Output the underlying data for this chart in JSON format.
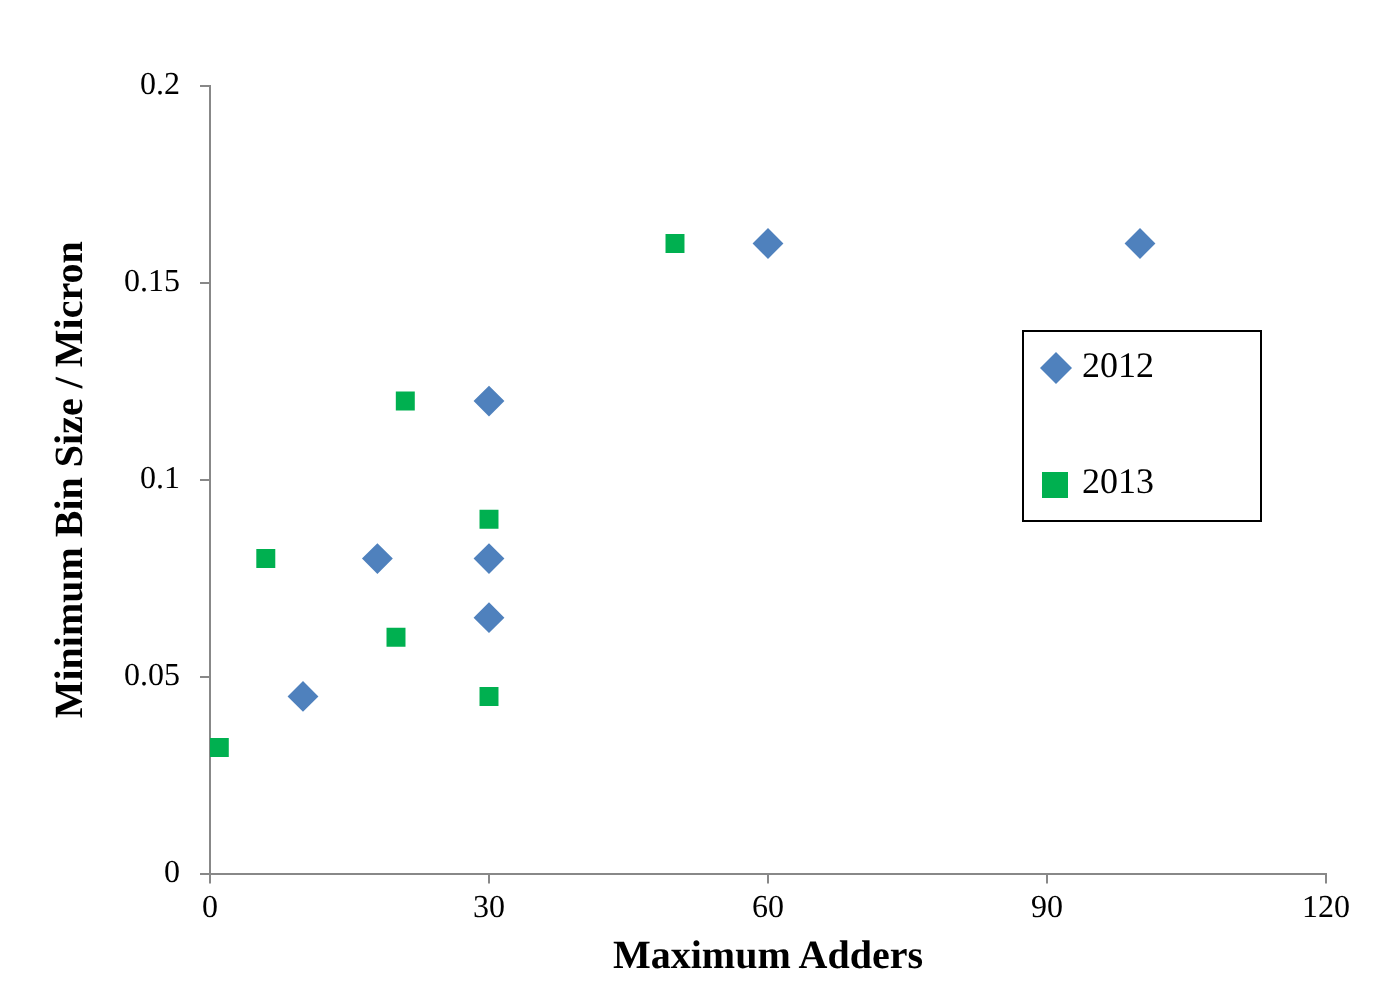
{
  "chart_data": {
    "type": "scatter",
    "xlabel": "Maximum Adders",
    "ylabel": "Minimum Bin Size / Micron",
    "xlim": [
      0,
      120
    ],
    "xticks": [
      0,
      30,
      60,
      90,
      120
    ],
    "ylim": [
      0,
      0.2
    ],
    "yticks": [
      0,
      0.05,
      0.1,
      0.15,
      0.2
    ],
    "grid": false,
    "legend": "right",
    "series": [
      {
        "name": "2012",
        "color": "#4f81bd",
        "marker": "diamond",
        "x": [
          10,
          18,
          30,
          30,
          30,
          60,
          100
        ],
        "values": [
          0.045,
          0.08,
          0.12,
          0.08,
          0.065,
          0.16,
          0.16
        ]
      },
      {
        "name": "2013",
        "color": "#00b050",
        "marker": "square",
        "x": [
          1,
          6,
          21,
          30,
          20,
          30,
          50
        ],
        "values": [
          0.032,
          0.08,
          0.12,
          0.09,
          0.06,
          0.045,
          0.16
        ]
      }
    ]
  }
}
